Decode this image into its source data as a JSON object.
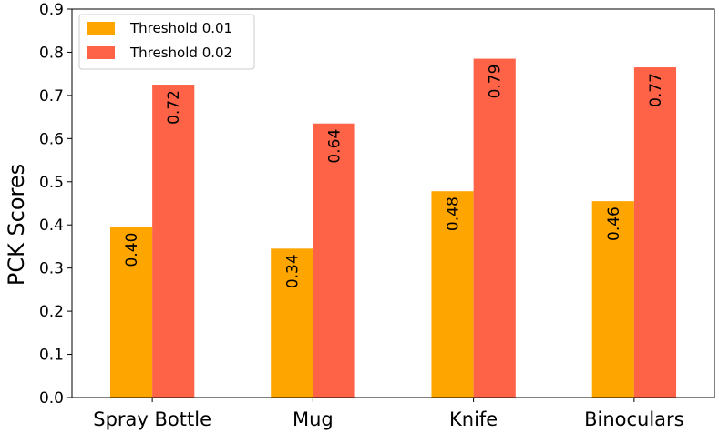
{
  "chart_data": {
    "type": "bar",
    "categories": [
      "Spray Bottle",
      "Mug",
      "Knife",
      "Binoculars"
    ],
    "series": [
      {
        "name": "Threshold 0.01",
        "values": [
          0.395,
          0.345,
          0.478,
          0.455
        ],
        "labels": [
          "0.40",
          "0.34",
          "0.48",
          "0.46"
        ],
        "color": "#FFA500"
      },
      {
        "name": "Threshold 0.02",
        "values": [
          0.725,
          0.635,
          0.785,
          0.765
        ],
        "labels": [
          "0.72",
          "0.64",
          "0.79",
          "0.77"
        ],
        "color": "#FF6347"
      }
    ],
    "ylabel": "PCK Scores",
    "xlabel": "",
    "ylim": [
      0,
      0.9
    ],
    "yticks": [
      "0.0",
      "0.1",
      "0.2",
      "0.3",
      "0.4",
      "0.5",
      "0.6",
      "0.7",
      "0.8",
      "0.9"
    ],
    "legend": "top-left",
    "grid": false
  }
}
